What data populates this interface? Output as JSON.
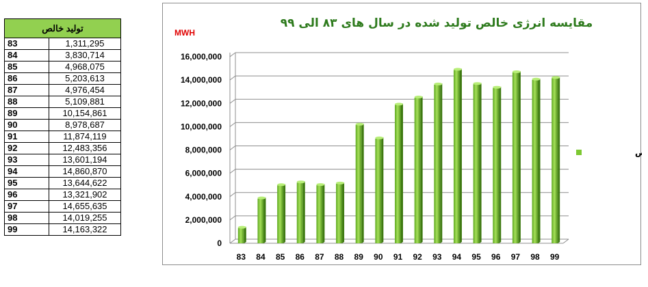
{
  "table": {
    "header": "تولید خالص",
    "rows": [
      {
        "year": "83",
        "value": "1,311,295"
      },
      {
        "year": "84",
        "value": "3,830,714"
      },
      {
        "year": "85",
        "value": "4,968,075"
      },
      {
        "year": "86",
        "value": "5,203,613"
      },
      {
        "year": "87",
        "value": "4,976,454"
      },
      {
        "year": "88",
        "value": "5,109,881"
      },
      {
        "year": "89",
        "value": "10,154,861"
      },
      {
        "year": "90",
        "value": "8,978,687"
      },
      {
        "year": "91",
        "value": "11,874,119"
      },
      {
        "year": "92",
        "value": "12,483,356"
      },
      {
        "year": "93",
        "value": "13,601,194"
      },
      {
        "year": "94",
        "value": "14,860,870"
      },
      {
        "year": "95",
        "value": "13,644,622"
      },
      {
        "year": "96",
        "value": "13,321,902"
      },
      {
        "year": "97",
        "value": "14,655,635"
      },
      {
        "year": "98",
        "value": "14,019,255"
      },
      {
        "year": "99",
        "value": "14,163,322"
      }
    ]
  },
  "chart_data": {
    "type": "bar",
    "title": "مقایسه انرژی خالص تولید شده در سال های ۸۳ الی ۹۹",
    "unit_label": "MWH",
    "categories": [
      "83",
      "84",
      "85",
      "86",
      "87",
      "88",
      "89",
      "90",
      "91",
      "92",
      "93",
      "94",
      "95",
      "96",
      "97",
      "98",
      "99"
    ],
    "series": [
      {
        "name": "تولید خالص",
        "values": [
          1311295,
          3830714,
          4968075,
          5203613,
          4976454,
          5109881,
          10154861,
          8978687,
          11874119,
          12483356,
          13601194,
          14860870,
          13644622,
          13321902,
          14655635,
          14019255,
          14163322
        ]
      }
    ],
    "ylim": [
      0,
      16000000
    ],
    "yticks": [
      "0",
      "2,000,000",
      "4,000,000",
      "6,000,000",
      "8,000,000",
      "10,000,000",
      "12,000,000",
      "14,000,000",
      "16,000,000"
    ],
    "grid": true,
    "legend_position": "right",
    "bar_color": "#7dc832"
  }
}
